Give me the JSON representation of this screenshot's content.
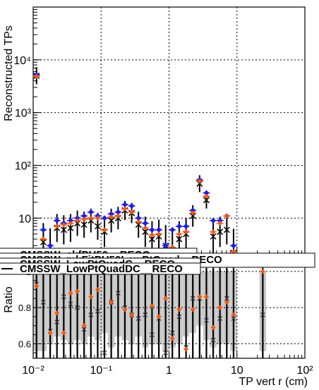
{
  "chart_data": {
    "type": "scatter",
    "xlabel": "TP vert r (cm)",
    "ylabel_top": "Reconstructed TPs",
    "ylabel_bottom": "Ratio",
    "xscale": "log",
    "xlim": [
      0.01,
      100
    ],
    "top": {
      "yscale": "log",
      "ylim": [
        2.1,
        100000
      ],
      "y_ticks": [
        {
          "value": 10,
          "label": "10"
        },
        {
          "value": 100,
          "label": "10²"
        },
        {
          "value": 1000,
          "label": "10³"
        },
        {
          "value": 10000,
          "label": "10⁴"
        }
      ]
    },
    "bottom": {
      "ylim": [
        0.52,
        1.05
      ],
      "y_ticks": [
        {
          "value": 0.6,
          "label": "0.6"
        },
        {
          "value": 0.8,
          "label": "0.8"
        },
        {
          "value": 1.0,
          "label": "1"
        }
      ]
    },
    "x_ticks": [
      {
        "value": 0.01,
        "label": "10⁻²"
      },
      {
        "value": 0.1,
        "label": "10⁻¹"
      },
      {
        "value": 1,
        "label": "1"
      },
      {
        "value": 10,
        "label": "10"
      },
      {
        "value": 100,
        "label": "10²"
      }
    ],
    "grid": true,
    "legend": {
      "placement": "middle",
      "entries": [
        {
          "label": "CMSSW_ckfPU50__RECO",
          "color": "#000000"
        },
        {
          "label": "CMSSW_mkFitPU50LowPtQuad__RECO",
          "color": "#1a1aff"
        },
        {
          "label": "CMSSW_LowPtQuadC__RECO",
          "color": "#000000"
        },
        {
          "label": "CMSSW_LowPtQuadDC__RECO",
          "color": "#000000"
        }
      ]
    },
    "series": [
      {
        "color": "#000000",
        "marker": "cross",
        "x": [
          0.0112,
          0.0141,
          0.0178,
          0.0224,
          0.0282,
          0.0355,
          0.0447,
          0.0562,
          0.0708,
          0.0891,
          0.112,
          0.141,
          0.178,
          0.224,
          0.282,
          0.355,
          0.447,
          0.562,
          0.708,
          0.891,
          1.12,
          1.41,
          1.78,
          2.24,
          2.82,
          3.55,
          4.47,
          5.62,
          7.08,
          8.91
        ],
        "y": [
          5000,
          3.5,
          2.3,
          6.5,
          6.0,
          6.5,
          8.0,
          7.5,
          9.0,
          7.0,
          5.5,
          9.0,
          10.0,
          14.0,
          12.5,
          7.5,
          5.5,
          4.0,
          4.5,
          3.0,
          2.3,
          4.0,
          5.0,
          11.0,
          45.0,
          22.0,
          4.5,
          5.5,
          6.0,
          2.2
        ]
      },
      {
        "color": "#1a1aff",
        "marker": "diamond",
        "x": [
          0.0112,
          0.0141,
          0.0178,
          0.0224,
          0.0282,
          0.0355,
          0.0447,
          0.0562,
          0.0708,
          0.0891,
          0.112,
          0.141,
          0.178,
          0.224,
          0.282,
          0.355,
          0.447,
          0.562,
          0.708,
          0.891,
          1.12,
          1.41,
          1.78,
          2.24,
          2.82,
          3.55,
          4.47,
          5.62,
          7.08,
          8.91
        ],
        "y": [
          5200,
          6.0,
          3.0,
          9.0,
          8.0,
          9.0,
          10.0,
          11.0,
          13.0,
          11.0,
          10.0,
          12.0,
          13.0,
          18.0,
          17.0,
          10.0,
          8.0,
          6.0,
          6.0,
          3.0,
          6.0,
          7.0,
          7.0,
          14.0,
          53.0,
          30.0,
          9.0,
          9.0,
          11.0,
          3.0
        ]
      },
      {
        "color": "#ff5500",
        "marker": "diamond",
        "x": [
          0.0112,
          0.0141,
          0.0178,
          0.0224,
          0.0282,
          0.0355,
          0.0447,
          0.0562,
          0.0708,
          0.0891,
          0.112,
          0.141,
          0.178,
          0.224,
          0.282,
          0.355,
          0.447,
          0.562,
          0.708,
          0.891,
          1.12,
          1.41,
          1.78,
          2.24,
          2.82,
          3.55,
          4.47,
          5.62,
          7.08,
          8.91
        ],
        "y": [
          4900,
          4.0,
          2.0,
          7.0,
          7.5,
          8.0,
          9.0,
          9.5,
          10.0,
          10.0,
          6.0,
          10.5,
          11.0,
          15.0,
          13.0,
          8.5,
          6.5,
          4.8,
          5.0,
          2.5,
          2.8,
          5.0,
          5.5,
          12.5,
          50.0,
          26.0,
          5.5,
          8.0,
          11.0,
          2.3
        ]
      }
    ],
    "ratio": {
      "x": [
        0.0112,
        0.0141,
        0.0178,
        0.0224,
        0.0282,
        0.0355,
        0.0447,
        0.0562,
        0.0708,
        0.0891,
        0.112,
        0.141,
        0.178,
        0.224,
        0.282,
        0.355,
        0.447,
        0.562,
        0.708,
        0.891,
        1.12,
        1.41,
        1.78,
        2.24,
        2.82,
        3.55,
        4.47,
        5.62,
        7.08,
        8.91,
        24.0
      ],
      "band_low": [
        0.56,
        0.56,
        0.6,
        0.64,
        0.62,
        0.6,
        0.62,
        0.6,
        0.64,
        0.62,
        0.66,
        0.58,
        0.64,
        0.62,
        0.6,
        0.64,
        0.58,
        0.6,
        0.6,
        0.56,
        0.58,
        0.6,
        0.64,
        0.66,
        0.7,
        0.62,
        0.58,
        0.6,
        0.6,
        0.56,
        0.56
      ],
      "band_high": [
        0.98,
        0.98,
        1.0,
        1.0,
        1.0,
        1.0,
        1.0,
        1.0,
        1.0,
        1.0,
        1.0,
        1.0,
        1.0,
        1.0,
        1.0,
        1.0,
        1.0,
        1.0,
        1.0,
        1.0,
        1.0,
        1.0,
        1.0,
        1.0,
        1.0,
        1.0,
        1.0,
        1.0,
        1.0,
        1.0,
        1.0
      ],
      "series_crosses": [
        0.93,
        0.83,
        0.67,
        0.72,
        0.86,
        0.82,
        0.8,
        0.68,
        0.76,
        0.78,
        0.55,
        0.83,
        0.88,
        0.8,
        0.76,
        0.74,
        0.76,
        0.65,
        0.74,
        0.55,
        0.66,
        0.75,
        0.58,
        0.85,
        0.85,
        0.73,
        0.62,
        0.74,
        0.85,
        0.74,
        0.76
      ],
      "series_orange": [
        0.92,
        1.0,
        0.66,
        0.77,
        0.66,
        0.88,
        0.89,
        0.7,
        0.86,
        0.9,
        1.0,
        0.83,
        1.0,
        0.79,
        0.76,
        1.0,
        1.0,
        0.81,
        0.75,
        0.85,
        0.63,
        0.79,
        0.57,
        0.79,
        0.86,
        0.86,
        0.69,
        0.8,
        0.83,
        0.76,
        1.0
      ]
    }
  }
}
